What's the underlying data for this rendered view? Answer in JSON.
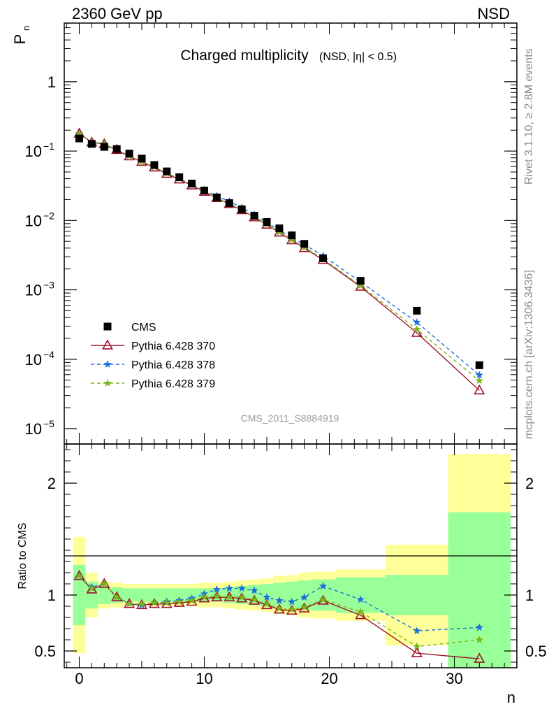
{
  "header": {
    "left": "2360 GeV pp",
    "right": "NSD"
  },
  "side_notes": {
    "top": "Rivet 3.1.10, ≥ 2.8M events",
    "bottom": "mcplots.cern.ch [arXiv:1306.3436]"
  },
  "watermark": "CMS_2011_S8884919",
  "chart_data": [
    {
      "type": "scatter",
      "panel": "main",
      "title_main": "Charged multiplicity",
      "title_sub": "(NSD, |η| < 0.5)",
      "ylabel": "P",
      "ylabel_sub": "n",
      "yscale": "log",
      "ylim": [
        6e-06,
        7
      ],
      "xlim": [
        -1.2,
        35
      ],
      "yticks": [
        {
          "v": 1e-05,
          "m": "10",
          "e": "−5"
        },
        {
          "v": 0.0001,
          "m": "10",
          "e": "−4"
        },
        {
          "v": 0.001,
          "m": "10",
          "e": "−3"
        },
        {
          "v": 0.01,
          "m": "10",
          "e": "−2"
        },
        {
          "v": 0.1,
          "m": "10",
          "e": "−1"
        },
        {
          "v": 1,
          "m": "1",
          "e": ""
        }
      ],
      "x": [
        0,
        1,
        2,
        3,
        4,
        5,
        6,
        7,
        8,
        9,
        10,
        11,
        12,
        13,
        14,
        15,
        16,
        17,
        18,
        19.5,
        22.5,
        27,
        32
      ],
      "series": [
        {
          "name": "CMS",
          "color": "#000000",
          "marker": "square",
          "values": [
            0.152,
            0.127,
            0.115,
            0.107,
            0.092,
            0.078,
            0.063,
            0.051,
            0.042,
            0.034,
            0.027,
            0.0215,
            0.0178,
            0.0145,
            0.0117,
            0.0095,
            0.0077,
            0.0061,
            0.0046,
            0.00285,
            0.00135,
            0.0005,
            8.2e-05
          ]
        },
        {
          "name": "Pythia 6.428 370",
          "color": "#a0102a",
          "marker": "triangle",
          "dash": "",
          "values": [
            0.179,
            0.133,
            0.126,
            0.104,
            0.084,
            0.07,
            0.058,
            0.047,
            0.039,
            0.032,
            0.0259,
            0.021,
            0.0173,
            0.0141,
            0.0111,
            0.0087,
            0.0067,
            0.0052,
            0.004,
            0.0027,
            0.00111,
            0.00024,
            3.55e-05
          ]
        },
        {
          "name": "Pythia 6.428 378",
          "color": "#1a6fdb",
          "marker": "star",
          "dash": "5,4",
          "values": [
            0.178,
            0.136,
            0.127,
            0.104,
            0.085,
            0.071,
            0.059,
            0.048,
            0.04,
            0.033,
            0.0272,
            0.0226,
            0.0187,
            0.0154,
            0.0122,
            0.0093,
            0.0073,
            0.0056,
            0.0045,
            0.0031,
            0.0013,
            0.00034,
            5.9e-05
          ]
        },
        {
          "name": "Pythia 6.428 379",
          "color": "#7cb518",
          "marker": "star",
          "dash": "5,4",
          "values": [
            0.178,
            0.135,
            0.126,
            0.104,
            0.085,
            0.071,
            0.059,
            0.048,
            0.04,
            0.033,
            0.0265,
            0.0212,
            0.0174,
            0.0142,
            0.0112,
            0.0088,
            0.0068,
            0.0053,
            0.0041,
            0.0028,
            0.00115,
            0.00027,
            4.9e-05
          ]
        }
      ]
    },
    {
      "type": "scatter",
      "panel": "ratio",
      "ylabel": "Ratio to CMS",
      "xlabel": "n",
      "ylim": [
        0.35,
        2.35
      ],
      "xlim": [
        -1.2,
        35
      ],
      "yticks": [
        "0.5",
        "1",
        "2"
      ],
      "xticks": [
        "0",
        "10",
        "20",
        "30"
      ],
      "band_edges": [
        -0.5,
        0.5,
        1.5,
        2.5,
        3.5,
        4.5,
        5.5,
        6.5,
        7.5,
        8.5,
        9.5,
        10.5,
        11.5,
        12.5,
        13.5,
        14.5,
        15.5,
        16.5,
        17.5,
        18.5,
        20.5,
        24.5,
        29.5,
        34.5
      ],
      "band_inner": [
        0.27,
        0.12,
        0.08,
        0.07,
        0.06,
        0.06,
        0.06,
        0.06,
        0.06,
        0.06,
        0.06,
        0.06,
        0.07,
        0.08,
        0.09,
        0.1,
        0.11,
        0.12,
        0.13,
        0.14,
        0.16,
        0.18,
        0.74
      ],
      "band_outer": [
        0.52,
        0.2,
        0.12,
        0.11,
        0.1,
        0.1,
        0.1,
        0.1,
        0.1,
        0.1,
        0.11,
        0.11,
        0.12,
        0.13,
        0.14,
        0.15,
        0.17,
        0.18,
        0.2,
        0.21,
        0.23,
        0.45,
        1.26
      ],
      "x": [
        0,
        1,
        2,
        3,
        4,
        5,
        6,
        7,
        8,
        9,
        10,
        11,
        12,
        13,
        14,
        15,
        16,
        17,
        18,
        19.5,
        22.5,
        27,
        32
      ],
      "series": [
        {
          "name": "Pythia 6.428 370",
          "color": "#a0102a",
          "marker": "triangle",
          "dash": "",
          "values": [
            1.17,
            1.05,
            1.1,
            0.98,
            0.92,
            0.91,
            0.92,
            0.92,
            0.93,
            0.94,
            0.97,
            0.98,
            0.98,
            0.97,
            0.95,
            0.91,
            0.87,
            0.86,
            0.88,
            0.95,
            0.82,
            0.48,
            0.43
          ]
        },
        {
          "name": "Pythia 6.428 378",
          "color": "#1a6fdb",
          "marker": "star",
          "dash": "5,4",
          "values": [
            1.17,
            1.07,
            1.1,
            0.98,
            0.92,
            0.91,
            0.93,
            0.94,
            0.95,
            0.97,
            1.01,
            1.05,
            1.06,
            1.06,
            1.04,
            0.98,
            0.95,
            0.94,
            0.98,
            1.08,
            0.96,
            0.68,
            0.71
          ]
        },
        {
          "name": "Pythia 6.428 379",
          "color": "#7cb518",
          "marker": "star",
          "dash": "5,4",
          "values": [
            1.17,
            1.06,
            1.1,
            0.98,
            0.92,
            0.92,
            0.93,
            0.93,
            0.94,
            0.95,
            0.98,
            0.99,
            0.98,
            0.98,
            0.96,
            0.92,
            0.88,
            0.87,
            0.89,
            0.96,
            0.85,
            0.54,
            0.6
          ]
        }
      ]
    }
  ]
}
